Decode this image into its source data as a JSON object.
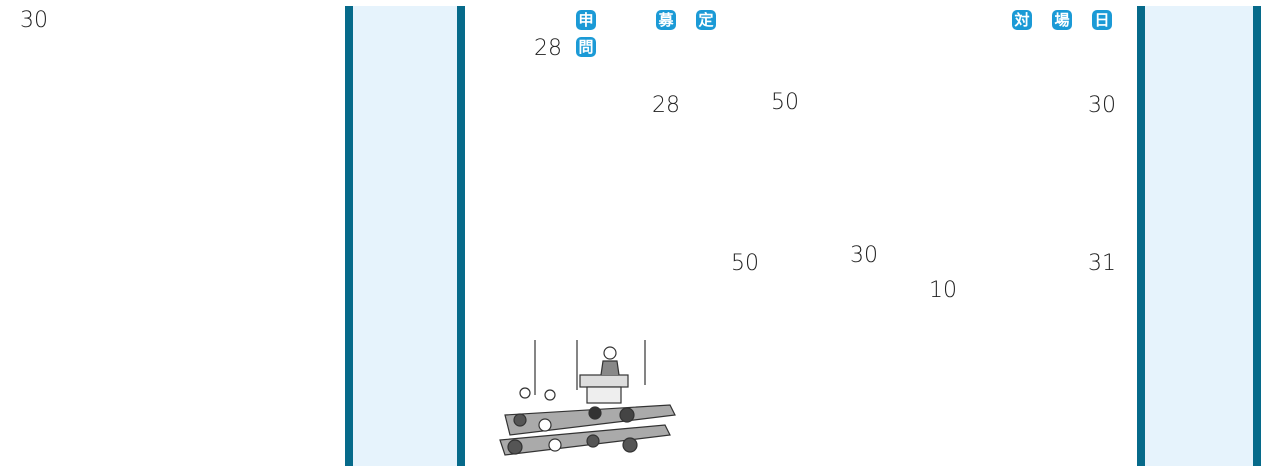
{
  "page_number": "30",
  "badges": [
    "申",
    "問",
    "募",
    "定",
    "対",
    "場",
    "日"
  ],
  "numbers": [
    "28",
    "28",
    "50",
    "30",
    "50",
    "30",
    "10",
    "31"
  ]
}
